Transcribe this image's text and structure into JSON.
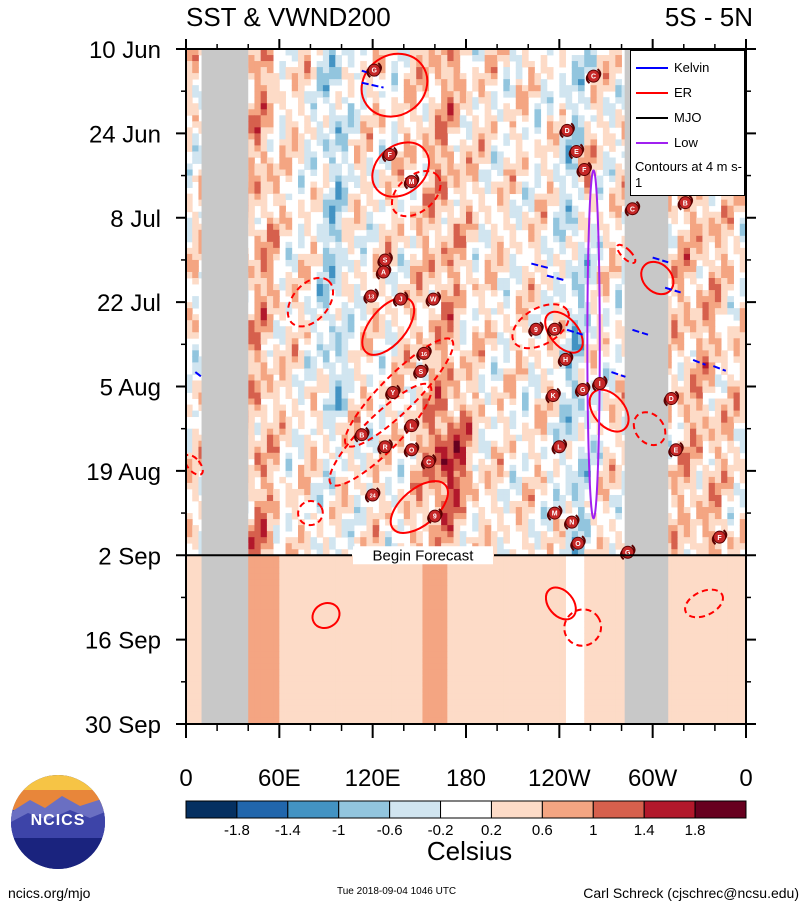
{
  "title_left": "SST & VWND200",
  "title_right": "5S - 5N",
  "forecast_label": "Begin Forecast",
  "chart_data": {
    "type": "heatmap",
    "x_ticks": [
      "0",
      "60E",
      "120E",
      "180",
      "120W",
      "60W",
      "0"
    ],
    "x_tick_values": [
      0,
      60,
      120,
      180,
      240,
      300,
      360
    ],
    "xlim": [
      0,
      360
    ],
    "y_ticks": [
      "10 Jun",
      "24 Jun",
      "8 Jul",
      "22 Jul",
      "5 Aug",
      "19 Aug",
      "2 Sep",
      "16 Sep",
      "30 Sep"
    ],
    "y_tick_days": [
      0,
      14,
      28,
      42,
      56,
      70,
      84,
      98,
      112
    ],
    "forecast_start_day": 84,
    "colorbar": {
      "label": "Celsius",
      "tick_labels": [
        "-1.8",
        "-1.4",
        "-1",
        "-0.6",
        "-0.2",
        "0.2",
        "0.6",
        "1",
        "1.4",
        "1.8"
      ],
      "colors": [
        "#053061",
        "#2166ac",
        "#4393c3",
        "#92c5de",
        "#d1e5f0",
        "#ffffff",
        "#fddbc7",
        "#f4a582",
        "#d6604d",
        "#b2182b",
        "#67001f"
      ]
    },
    "land_masks": [
      {
        "lon": [
          10,
          40
        ],
        "day": [
          0,
          112
        ]
      },
      {
        "lon": [
          282,
          310
        ],
        "day": [
          0,
          112
        ]
      }
    ],
    "legend": [
      {
        "name": "Kelvin",
        "color": "#0000ff"
      },
      {
        "name": "ER",
        "color": "#ff0000"
      },
      {
        "name": "MJO",
        "color": "#000000"
      },
      {
        "name": "Low",
        "color": "#a020f0"
      }
    ],
    "legend_note": "Contours at 4 m s-1",
    "storm_markers": [
      {
        "label": "G",
        "lon": 121,
        "day": 3.5
      },
      {
        "label": "C",
        "lon": 262,
        "day": 4.5
      },
      {
        "label": "D",
        "lon": 245,
        "day": 13.5
      },
      {
        "label": "E",
        "lon": 251,
        "day": 17
      },
      {
        "label": "F",
        "lon": 131,
        "day": 17.5
      },
      {
        "label": "F",
        "lon": 256,
        "day": 20
      },
      {
        "label": "M",
        "lon": 145,
        "day": 22
      },
      {
        "label": "C",
        "lon": 287,
        "day": 26.5
      },
      {
        "label": "B",
        "lon": 321,
        "day": 25.5
      },
      {
        "label": "S",
        "lon": 128,
        "day": 35
      },
      {
        "label": "A",
        "lon": 127,
        "day": 37
      },
      {
        "label": "13",
        "lon": 119,
        "day": 41
      },
      {
        "label": "J",
        "lon": 138,
        "day": 41.5
      },
      {
        "label": "W",
        "lon": 159,
        "day": 41.5
      },
      {
        "label": "9",
        "lon": 225,
        "day": 46.5
      },
      {
        "label": "G",
        "lon": 237,
        "day": 46.5
      },
      {
        "label": "16",
        "lon": 153,
        "day": 50.5
      },
      {
        "label": "H",
        "lon": 244,
        "day": 51.5
      },
      {
        "label": "S",
        "lon": 151,
        "day": 53.5
      },
      {
        "label": "I",
        "lon": 266,
        "day": 55.5
      },
      {
        "label": "G",
        "lon": 255,
        "day": 56.5
      },
      {
        "label": "Y",
        "lon": 133,
        "day": 57
      },
      {
        "label": "K",
        "lon": 236,
        "day": 57.5
      },
      {
        "label": "D",
        "lon": 312,
        "day": 58
      },
      {
        "label": "L",
        "lon": 145,
        "day": 62.5
      },
      {
        "label": "B",
        "lon": 113,
        "day": 64
      },
      {
        "label": "L",
        "lon": 240,
        "day": 66
      },
      {
        "label": "R",
        "lon": 128,
        "day": 66
      },
      {
        "label": "O",
        "lon": 145,
        "day": 66.5
      },
      {
        "label": "E",
        "lon": 315,
        "day": 66.5
      },
      {
        "label": "C",
        "lon": 156,
        "day": 68.5
      },
      {
        "label": "24",
        "lon": 120,
        "day": 74
      },
      {
        "label": "M",
        "lon": 237,
        "day": 77
      },
      {
        "label": "9",
        "lon": 160,
        "day": 77.5
      },
      {
        "label": "N",
        "lon": 248,
        "day": 78.5
      },
      {
        "label": "F",
        "lon": 343,
        "day": 81
      },
      {
        "label": "O",
        "lon": 252,
        "day": 82
      },
      {
        "label": "G",
        "lon": 284,
        "day": 83.5
      }
    ]
  },
  "colorbar_title": "Celsius",
  "logo_text": "NCICS",
  "footer_left": "ncics.org/mjo",
  "footer_mid": "Tue 2018-09-04 1046 UTC",
  "footer_right": "Carl Schreck (cjschrec@ncsu.edu)"
}
